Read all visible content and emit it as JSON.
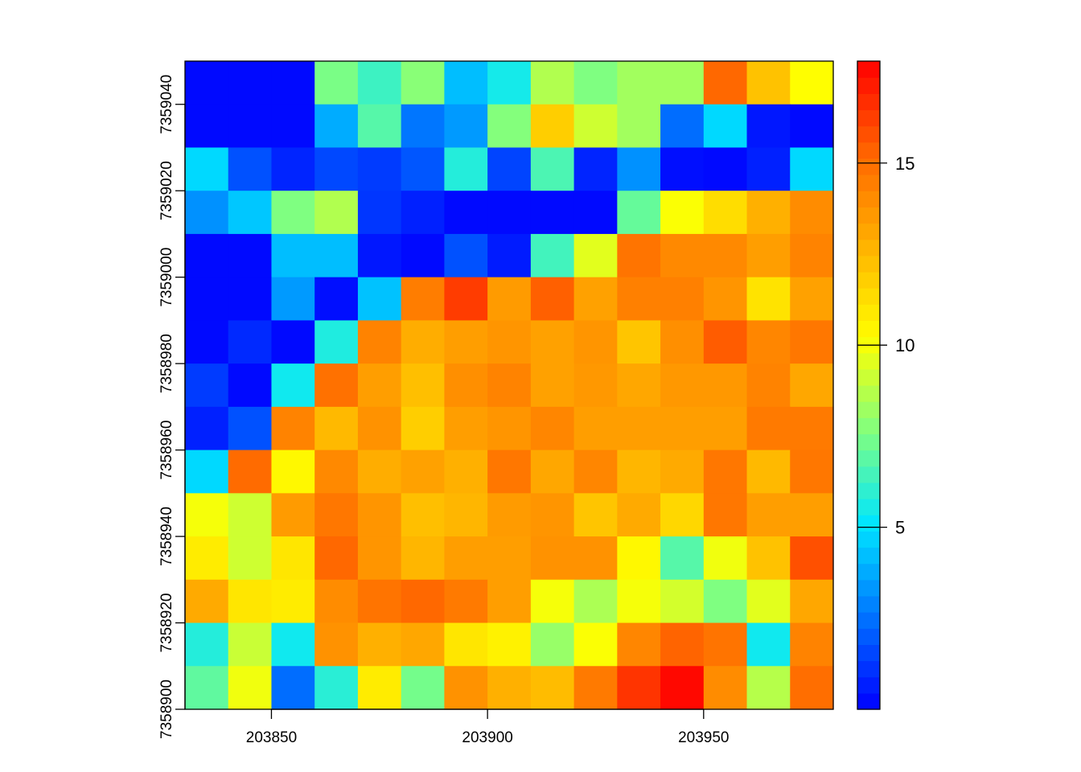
{
  "chart_data": {
    "type": "heatmap",
    "title": "",
    "xlabel": "",
    "ylabel": "",
    "x_range": [
      203830,
      203980
    ],
    "y_range": [
      7358900,
      7359050
    ],
    "cell_size": 10,
    "x_ticks": [
      203850,
      203900,
      203950
    ],
    "x_tick_labels": [
      "203850",
      "203900",
      "203950"
    ],
    "y_ticks": [
      7358900,
      7358920,
      7358940,
      7358960,
      7358980,
      7359000,
      7359020,
      7359040
    ],
    "y_tick_labels": [
      "7358900",
      "7358920",
      "7358940",
      "7358960",
      "7358980",
      "7359000",
      "7359020",
      "7359040"
    ],
    "colorbar": {
      "range": [
        0,
        17.8
      ],
      "ticks": [
        5,
        10,
        15
      ],
      "tick_labels": [
        "5",
        "10",
        "15"
      ],
      "palette": [
        "#0000ff",
        "#0073ff",
        "#00e6ff",
        "#80ff80",
        "#ffff00",
        "#ffb300",
        "#ff6600",
        "#ff0000"
      ],
      "legend_position": "right"
    },
    "values_rows_top_to_bottom": [
      [
        0.2,
        0.2,
        0.2,
        7.5,
        6.3,
        7.8,
        4.2,
        5.5,
        8.6,
        7.6,
        8.3,
        8.3,
        15.2,
        12.2,
        10.2
      ],
      [
        0.2,
        0.2,
        0.2,
        3.8,
        6.8,
        2.6,
        3.4,
        7.7,
        11.8,
        9.2,
        8.3,
        2.4,
        4.8,
        0.5,
        0.2
      ],
      [
        4.8,
        1.8,
        0.8,
        1.6,
        1.3,
        1.9,
        5.8,
        1.5,
        6.6,
        0.8,
        3.2,
        0.3,
        0.2,
        0.7,
        4.8
      ],
      [
        3.2,
        4.4,
        7.6,
        8.6,
        1.2,
        0.7,
        0.2,
        0.2,
        0.2,
        0.2,
        7.1,
        10.1,
        11.3,
        12.8,
        14.0
      ],
      [
        0.2,
        0.2,
        4.2,
        4.2,
        0.5,
        0.2,
        1.8,
        0.6,
        6.4,
        9.6,
        14.8,
        14.1,
        14.1,
        13.4,
        14.3
      ],
      [
        0.2,
        0.2,
        3.4,
        0.3,
        4.3,
        14.5,
        16.3,
        13.5,
        15.4,
        13.3,
        14.4,
        14.4,
        13.7,
        11.1,
        13.3
      ],
      [
        0.2,
        0.9,
        0.2,
        5.7,
        14.3,
        12.9,
        13.4,
        13.7,
        13.3,
        13.7,
        12.1,
        13.9,
        15.5,
        14.2,
        14.7
      ],
      [
        1.3,
        0.2,
        5.4,
        14.9,
        13.4,
        12.3,
        13.9,
        14.3,
        13.3,
        13.6,
        13.1,
        13.6,
        13.6,
        14.3,
        13.1
      ],
      [
        0.7,
        1.8,
        14.3,
        12.5,
        13.8,
        11.8,
        13.4,
        13.7,
        14.2,
        13.4,
        13.4,
        13.4,
        13.4,
        14.6,
        14.6
      ],
      [
        4.8,
        15.1,
        10.4,
        14.1,
        12.9,
        13.3,
        12.8,
        14.7,
        13.1,
        14.2,
        12.6,
        13.0,
        14.7,
        12.5,
        14.7
      ],
      [
        10.0,
        9.2,
        13.5,
        14.7,
        13.7,
        12.3,
        12.6,
        13.5,
        13.7,
        12.1,
        13.0,
        11.5,
        14.7,
        13.4,
        13.4
      ],
      [
        10.8,
        9.2,
        11.0,
        15.2,
        13.7,
        12.6,
        13.4,
        13.4,
        13.8,
        13.8,
        10.4,
        6.8,
        9.9,
        12.2,
        15.8
      ],
      [
        13.0,
        11.0,
        10.8,
        14.0,
        14.8,
        15.2,
        14.6,
        13.4,
        10.0,
        8.5,
        10.0,
        9.3,
        7.6,
        9.6,
        13.1
      ],
      [
        5.8,
        9.1,
        5.4,
        13.8,
        12.8,
        13.1,
        11.0,
        10.6,
        8.1,
        10.1,
        14.2,
        15.3,
        14.8,
        5.4,
        14.3
      ],
      [
        7.0,
        9.9,
        2.4,
        5.9,
        10.8,
        7.4,
        13.8,
        12.8,
        12.4,
        14.6,
        16.5,
        17.6,
        14.0,
        8.7,
        15.0
      ]
    ]
  }
}
